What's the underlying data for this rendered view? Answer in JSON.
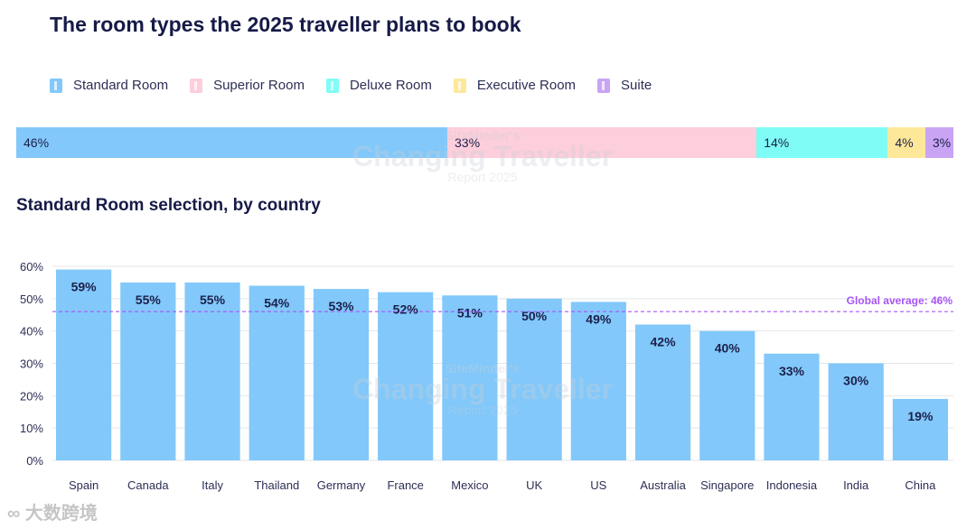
{
  "title": "The room types the 2025 traveller plans to book",
  "legend": [
    {
      "label": "Standard Room",
      "color": "#82c8fa"
    },
    {
      "label": "Superior Room",
      "color": "#fdcedb"
    },
    {
      "label": "Deluxe Room",
      "color": "#7ffcf5"
    },
    {
      "label": "Executive Room",
      "color": "#fde89a"
    },
    {
      "label": "Suite",
      "color": "#c9a4f4"
    }
  ],
  "stacked_bar": [
    {
      "label": "46%",
      "value": 46,
      "color": "#82c8fa"
    },
    {
      "label": "33%",
      "value": 33,
      "color": "#fdcedb"
    },
    {
      "label": "14%",
      "value": 14,
      "color": "#7ffcf5"
    },
    {
      "label": "4%",
      "value": 4,
      "color": "#fde89a"
    },
    {
      "label": "3%",
      "value": 3,
      "color": "#c9a4f4"
    }
  ],
  "subtitle": "Standard Room selection, by country",
  "watermark": {
    "line1": "SiteMinder's",
    "line2": "Changing Traveller",
    "line3": "Report 2025"
  },
  "footer_logo": "大数跨境",
  "chart_data": {
    "type": "bar",
    "title": "Standard Room selection, by country",
    "categories": [
      "Spain",
      "Canada",
      "Italy",
      "Thailand",
      "Germany",
      "France",
      "Mexico",
      "UK",
      "US",
      "Australia",
      "Singapore",
      "Indonesia",
      "India",
      "China"
    ],
    "values": [
      59,
      55,
      55,
      54,
      53,
      52,
      51,
      50,
      49,
      42,
      40,
      33,
      30,
      19
    ],
    "data_labels": [
      "59%",
      "55%",
      "55%",
      "54%",
      "53%",
      "52%",
      "51%",
      "50%",
      "49%",
      "42%",
      "40%",
      "33%",
      "30%",
      "19%"
    ],
    "yticks": [
      "0%",
      "10%",
      "20%",
      "30%",
      "40%",
      "50%",
      "60%"
    ],
    "ylim": [
      0,
      60
    ],
    "xlabel": "",
    "ylabel": "",
    "reference_line": {
      "value": 46,
      "label": "Global average: 46%",
      "color": "#a855f7"
    },
    "bar_color": "#82c8fa"
  }
}
